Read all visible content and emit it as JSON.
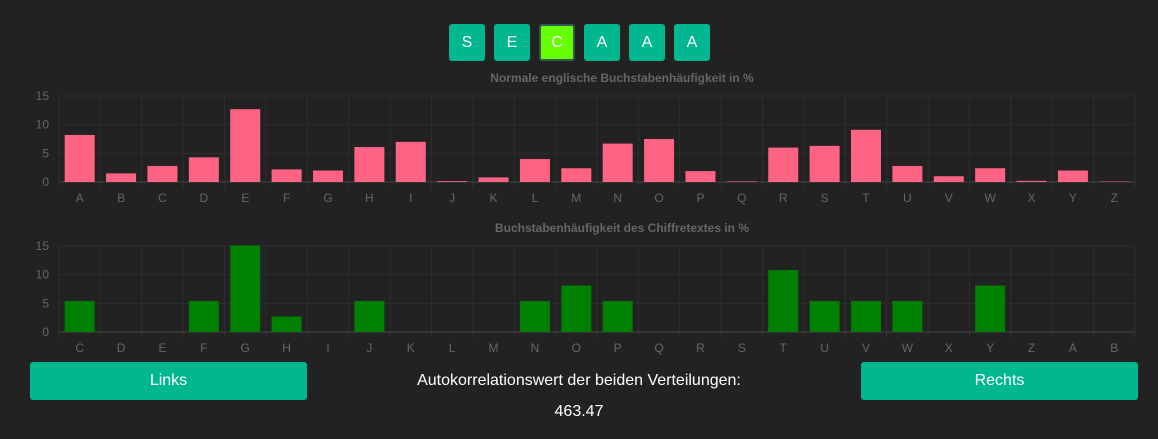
{
  "keyword": {
    "letters": [
      "S",
      "E",
      "C",
      "A",
      "A",
      "A"
    ],
    "active_index": 2
  },
  "colors": {
    "background": "#222222",
    "key": "#00b78f",
    "key_active": "#66ff00",
    "english_bars": "#ff6384",
    "cipher_bars": "#008000"
  },
  "chart_data": [
    {
      "type": "bar",
      "title": "Normale englische Buchstabenhäufigkeit in %",
      "categories": [
        "A",
        "B",
        "C",
        "D",
        "E",
        "F",
        "G",
        "H",
        "I",
        "J",
        "K",
        "L",
        "M",
        "N",
        "O",
        "P",
        "Q",
        "R",
        "S",
        "T",
        "U",
        "V",
        "W",
        "X",
        "Y",
        "Z"
      ],
      "values": [
        8.2,
        1.5,
        2.8,
        4.3,
        12.7,
        2.2,
        2.0,
        6.1,
        7.0,
        0.15,
        0.8,
        4.0,
        2.4,
        6.7,
        7.5,
        1.9,
        0.1,
        6.0,
        6.3,
        9.1,
        2.8,
        1.0,
        2.4,
        0.2,
        2.0,
        0.07
      ],
      "ylim": [
        0,
        15
      ],
      "yticks": [
        0,
        5,
        10,
        15
      ],
      "grid": true,
      "color": "#ff6384"
    },
    {
      "type": "bar",
      "title": "Buchstabenhäufigkeit des Chiffretextes in %",
      "categories": [
        "C",
        "D",
        "E",
        "F",
        "G",
        "H",
        "I",
        "J",
        "K",
        "L",
        "M",
        "N",
        "O",
        "P",
        "Q",
        "R",
        "S",
        "T",
        "U",
        "V",
        "W",
        "X",
        "Y",
        "Z",
        "A",
        "B"
      ],
      "values": [
        5.4,
        0,
        0,
        5.4,
        15.1,
        2.7,
        0,
        5.4,
        0,
        0,
        0,
        5.4,
        8.1,
        5.4,
        0,
        0,
        0,
        10.8,
        5.4,
        5.4,
        5.4,
        0,
        8.1,
        0,
        0,
        0
      ],
      "ylim": [
        0,
        15
      ],
      "yticks": [
        0,
        5,
        10,
        15
      ],
      "grid": true,
      "color": "#008000"
    }
  ],
  "buttons": {
    "left": "Links",
    "right": "Rechts"
  },
  "autocorrelation": {
    "label": "Autokorrelationswert der beiden Verteilungen:",
    "value": "463.47"
  }
}
